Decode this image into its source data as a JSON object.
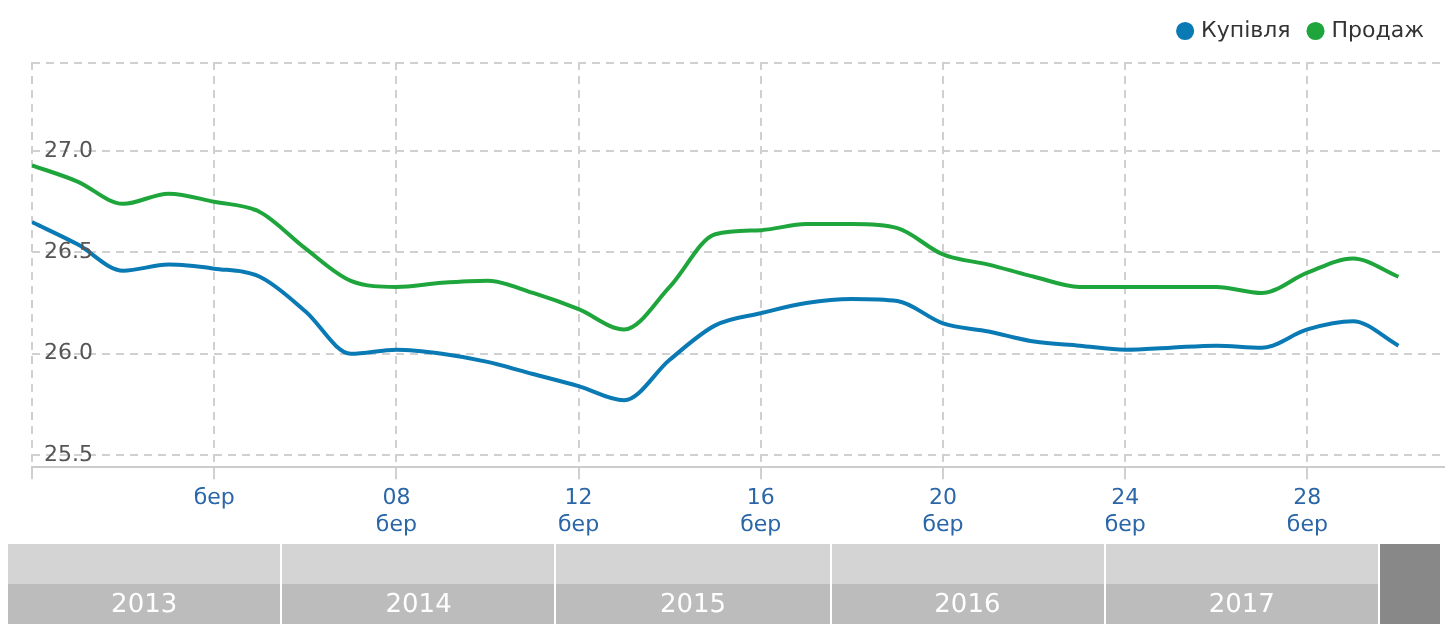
{
  "chart_data": {
    "type": "line",
    "x": [
      0,
      1,
      2,
      3,
      4,
      5,
      6,
      7,
      8,
      9,
      10,
      11,
      12,
      13,
      14,
      15,
      16,
      17,
      18,
      19,
      20,
      21,
      22,
      23,
      24,
      25,
      26,
      27,
      28,
      29,
      30
    ],
    "series": [
      {
        "name": "Купівля",
        "color": "#0a7ab5",
        "values": [
          26.65,
          26.54,
          26.41,
          26.44,
          26.42,
          26.38,
          26.21,
          26.0,
          26.02,
          26.0,
          25.96,
          25.9,
          25.84,
          25.77,
          25.97,
          26.14,
          26.2,
          26.25,
          26.27,
          26.26,
          26.15,
          26.11,
          26.06,
          26.04,
          26.02,
          26.03,
          26.04,
          26.03,
          26.12,
          26.16,
          26.04
        ]
      },
      {
        "name": "Продаж",
        "color": "#1ea53c",
        "values": [
          26.93,
          26.85,
          26.74,
          26.79,
          26.75,
          26.7,
          26.52,
          26.36,
          26.33,
          26.35,
          26.36,
          26.3,
          26.22,
          26.12,
          26.33,
          26.59,
          26.61,
          26.64,
          26.64,
          26.62,
          26.49,
          26.44,
          26.38,
          26.33,
          26.33,
          26.33,
          26.33,
          26.3,
          26.4,
          26.47,
          26.38
        ]
      }
    ],
    "xlim": [
      0,
      31
    ],
    "xticks": [
      {
        "value": 0,
        "label": null
      },
      {
        "value": 4,
        "label": "бер"
      },
      {
        "value": 8,
        "label": "08 бер"
      },
      {
        "value": 12,
        "label": "12 бер"
      },
      {
        "value": 16,
        "label": "16 бер"
      },
      {
        "value": 20,
        "label": "20 бер"
      },
      {
        "value": 24,
        "label": "24 бер"
      },
      {
        "value": 28,
        "label": "28 бер"
      }
    ],
    "ylim": [
      25.44,
      27.44
    ],
    "yticks": [
      {
        "value": 25.5,
        "label": "25.5"
      },
      {
        "value": 26,
        "label": "26.0"
      },
      {
        "value": 26.5,
        "label": "26.5"
      },
      {
        "value": 27,
        "label": "27.0"
      }
    ],
    "grid": true,
    "legend": "top right",
    "marker": "none",
    "line_style": "solid",
    "annotations": [
      "2013",
      "2014",
      "2015",
      "2016",
      "2017"
    ]
  }
}
